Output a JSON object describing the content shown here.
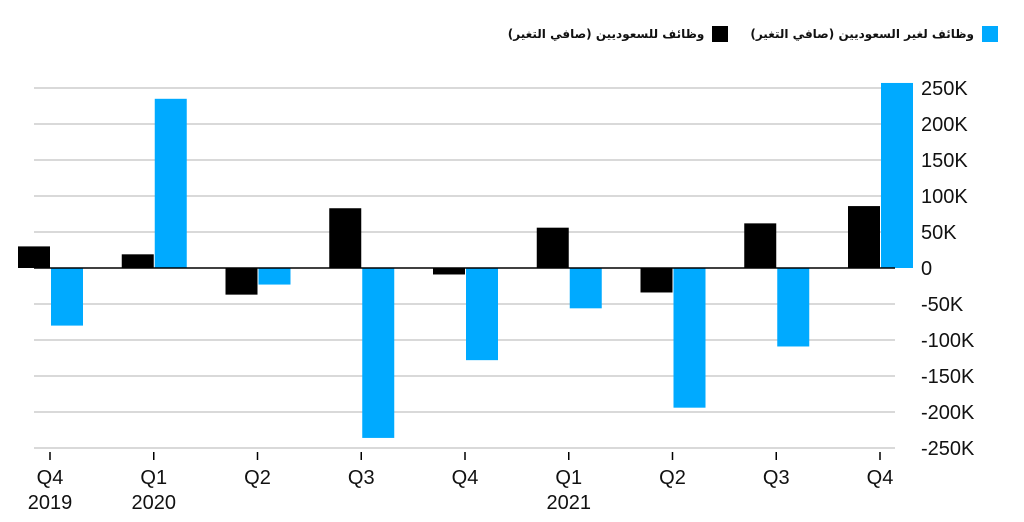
{
  "legend": {
    "series1_label": "وظائف للسعوديين (صافي التغير)",
    "series2_label": "وظائف لغير السعوديين (صافي التغير)"
  },
  "colors": {
    "series1": "#000000",
    "series2": "#00aaff",
    "grid": "#d9d9d9",
    "axis": "#000000"
  },
  "chart_data": {
    "type": "bar",
    "categories": [
      "Q4 2019",
      "Q1 2020",
      "Q2 2020",
      "Q3 2020",
      "Q4 2020",
      "Q1 2021",
      "Q2 2021",
      "Q3 2021",
      "Q4 2021"
    ],
    "x_tick_labels": [
      {
        "line1": "Q4",
        "line2": "2019"
      },
      {
        "line1": "Q1",
        "line2": "2020"
      },
      {
        "line1": "Q2",
        "line2": ""
      },
      {
        "line1": "Q3",
        "line2": ""
      },
      {
        "line1": "Q4",
        "line2": ""
      },
      {
        "line1": "Q1",
        "line2": "2021"
      },
      {
        "line1": "Q2",
        "line2": ""
      },
      {
        "line1": "Q3",
        "line2": ""
      },
      {
        "line1": "Q4",
        "line2": ""
      }
    ],
    "series": [
      {
        "name": "وظائف للسعوديين (صافي التغير)",
        "values": [
          30000,
          19000,
          -37000,
          83000,
          -9000,
          56000,
          -34000,
          62000,
          86000
        ]
      },
      {
        "name": "وظائف لغير السعوديين (صافي التغير)",
        "values": [
          -80000,
          235000,
          -23000,
          -236000,
          -128000,
          -56000,
          -194000,
          -109000,
          257000
        ]
      }
    ],
    "ylim": [
      -250000,
      250000
    ],
    "y_ticks": [
      250000,
      200000,
      150000,
      100000,
      50000,
      0,
      -50000,
      -100000,
      -150000,
      -200000,
      -250000
    ],
    "y_tick_labels": [
      "250K",
      "200K",
      "150K",
      "100K",
      "50K",
      "0",
      "-50K",
      "-100K",
      "-150K",
      "-200K",
      "-250K"
    ],
    "grid": true,
    "legend_position": "top-right",
    "y_axis_side": "right"
  }
}
